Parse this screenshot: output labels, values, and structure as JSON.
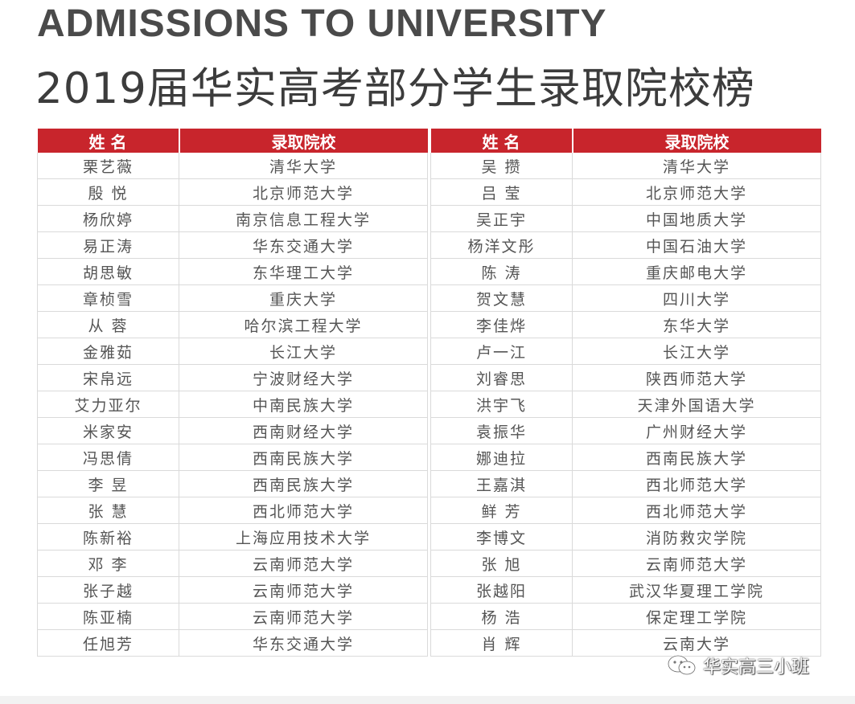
{
  "header": {
    "title_en": "ADMISSIONS TO UNIVERSITY",
    "title_cn": "2019届华实高考部分学生录取院校榜"
  },
  "table_headers": {
    "name": "姓 名",
    "school": "录取院校"
  },
  "left_rows": [
    {
      "name": "栗艺薇",
      "school": "清华大学"
    },
    {
      "name": "殷 悦",
      "school": "北京师范大学"
    },
    {
      "name": "杨欣婷",
      "school": "南京信息工程大学"
    },
    {
      "name": "易正涛",
      "school": "华东交通大学"
    },
    {
      "name": "胡思敏",
      "school": "东华理工大学"
    },
    {
      "name": "章桢雪",
      "school": "重庆大学"
    },
    {
      "name": "从 蓉",
      "school": "哈尔滨工程大学"
    },
    {
      "name": "金雅茹",
      "school": "长江大学"
    },
    {
      "name": "宋帛远",
      "school": "宁波财经大学"
    },
    {
      "name": "艾力亚尔",
      "school": "中南民族大学"
    },
    {
      "name": "米家安",
      "school": "西南财经大学"
    },
    {
      "name": "冯思倩",
      "school": "西南民族大学"
    },
    {
      "name": "李 昱",
      "school": "西南民族大学"
    },
    {
      "name": "张 慧",
      "school": "西北师范大学"
    },
    {
      "name": "陈新裕",
      "school": "上海应用技术大学"
    },
    {
      "name": "邓 李",
      "school": "云南师范大学"
    },
    {
      "name": "张子越",
      "school": "云南师范大学"
    },
    {
      "name": "陈亚楠",
      "school": "云南师范大学"
    },
    {
      "name": "任旭芳",
      "school": "华东交通大学"
    }
  ],
  "right_rows": [
    {
      "name": "吴 攒",
      "school": "清华大学"
    },
    {
      "name": "吕 莹",
      "school": "北京师范大学"
    },
    {
      "name": "吴正宇",
      "school": "中国地质大学"
    },
    {
      "name": "杨洋文彤",
      "school": "中国石油大学"
    },
    {
      "name": "陈 涛",
      "school": "重庆邮电大学"
    },
    {
      "name": "贺文慧",
      "school": "四川大学"
    },
    {
      "name": "李佳烨",
      "school": "东华大学"
    },
    {
      "name": "卢一江",
      "school": "长江大学"
    },
    {
      "name": "刘睿思",
      "school": "陕西师范大学"
    },
    {
      "name": "洪宇飞",
      "school": "天津外国语大学"
    },
    {
      "name": "袁振华",
      "school": "广州财经大学"
    },
    {
      "name": "娜迪拉",
      "school": "西南民族大学"
    },
    {
      "name": "王嘉淇",
      "school": "西北师范大学"
    },
    {
      "name": "鲜 芳",
      "school": "西北师范大学"
    },
    {
      "name": "李博文",
      "school": "消防救灾学院"
    },
    {
      "name": "张 旭",
      "school": "云南师范大学"
    },
    {
      "name": "张越阳",
      "school": "武汉华夏理工学院"
    },
    {
      "name": "杨 浩",
      "school": "保定理工学院"
    },
    {
      "name": "肖 辉",
      "school": "云南大学"
    }
  ],
  "watermark": {
    "text": "华实高三小班",
    "icon": "wechat-icon"
  },
  "colors": {
    "header_red": "#c8252c",
    "text_gray": "#555555",
    "title_gray": "#4a4a4a"
  }
}
